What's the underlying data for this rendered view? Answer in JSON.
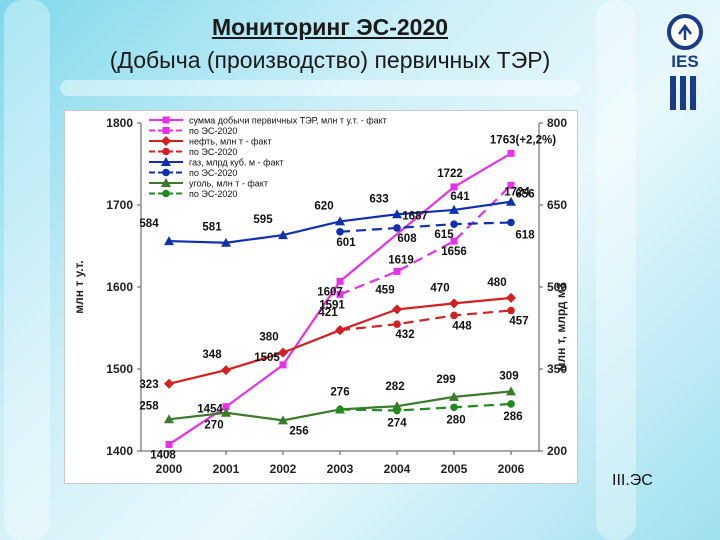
{
  "slide": {
    "title": "Мониторинг ЭС-2020",
    "subtitle": "(Добыча (производство) первичных ТЭР)",
    "footer": "III.ЭС",
    "logo_text": "IES"
  },
  "chart_data": {
    "type": "line",
    "x": [
      "2000",
      "2001",
      "2002",
      "2003",
      "2004",
      "2005",
      "2006"
    ],
    "ylabel": "млн т у.т.",
    "y2label": "млн т, млрд м3",
    "ylim": [
      1400,
      1800
    ],
    "yticks": [
      "1400",
      "1500",
      "1600",
      "1700",
      "1800"
    ],
    "y2lim": [
      200,
      800
    ],
    "y2ticks": [
      "200",
      "350",
      "500",
      "650",
      "800"
    ],
    "legend_position": "top-left",
    "grid": false,
    "series": [
      {
        "name": "сумма добычи первичных ТЭР, млн т у.т. - факт",
        "axis": "left",
        "color": "#e830e8",
        "dash": false,
        "marker": "square",
        "values": [
          1408,
          1454,
          1505,
          1607,
          null,
          1722,
          1763
        ],
        "labels": [
          "1408",
          "1454",
          "1505",
          "1607",
          "",
          "1722",
          "1763(+2,2%)"
        ]
      },
      {
        "name": "по ЭС-2020",
        "axis": "left",
        "color": "#e830e8",
        "dash": true,
        "marker": "square",
        "values": [
          null,
          null,
          null,
          1591,
          1619,
          1656,
          1724
        ],
        "labels": [
          "",
          "",
          "",
          "1591",
          "1619",
          "1656",
          "1724"
        ]
      },
      {
        "name": "нефть, млн т - факт",
        "axis": "right",
        "color": "#d42020",
        "dash": false,
        "marker": "diamond",
        "values": [
          323,
          348,
          380,
          421,
          459,
          470,
          480
        ],
        "labels": [
          "323",
          "348",
          "380",
          "421",
          "459",
          "470",
          "480"
        ]
      },
      {
        "name": "по ЭС-2020",
        "axis": "right",
        "color": "#d42020",
        "dash": true,
        "marker": "circle",
        "values": [
          null,
          null,
          null,
          421,
          432,
          448,
          457
        ],
        "labels": [
          "",
          "",
          "",
          "",
          "432",
          "448",
          "457"
        ]
      },
      {
        "name": "газ, млрд куб. м - факт",
        "axis": "right",
        "color": "#1030b0",
        "dash": false,
        "marker": "triangle",
        "values": [
          584,
          581,
          595,
          620,
          633,
          641,
          656
        ],
        "labels": [
          "584",
          "581",
          "595",
          "620",
          "633",
          "641",
          "656"
        ]
      },
      {
        "name": "по ЭС-2020",
        "axis": "right",
        "color": "#1030b0",
        "dash": true,
        "marker": "circle",
        "values": [
          null,
          null,
          null,
          601,
          608,
          615,
          618
        ],
        "labels": [
          "",
          "",
          "",
          "601",
          "608",
          "615",
          "618"
        ]
      },
      {
        "name": "уголь, млн т - факт",
        "axis": "right",
        "color": "#3a7a2a",
        "dash": false,
        "marker": "triangle",
        "values": [
          258,
          270,
          256,
          276,
          282,
          299,
          309
        ],
        "labels": [
          "258",
          "270",
          "256",
          "276",
          "282",
          "299",
          "309"
        ]
      },
      {
        "name": "по ЭС-2020",
        "axis": "right",
        "color": "#1f8a1f",
        "dash": true,
        "marker": "circle",
        "values": [
          null,
          null,
          null,
          276,
          274,
          280,
          286
        ],
        "labels": [
          "",
          "",
          "",
          "",
          "274",
          "280",
          "286"
        ]
      }
    ],
    "extra_labels": [
      {
        "text": "1687",
        "series": 1,
        "index": 4
      }
    ]
  }
}
